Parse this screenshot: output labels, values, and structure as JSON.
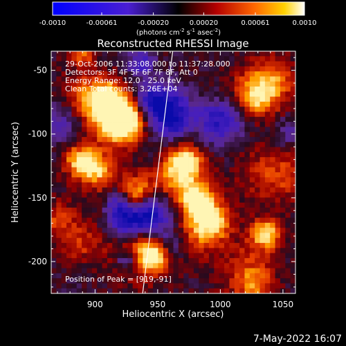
{
  "colorbar": {
    "ticks": [
      "-0.0010",
      "-0.00061",
      "-0.00020",
      "0.00020",
      "0.00061",
      "0.0010"
    ],
    "tick_values": [
      -0.001,
      -0.00061,
      -0.0002,
      0.0002,
      0.00061,
      0.001
    ],
    "min": -0.001,
    "max": 0.001,
    "units_base": "(photons cm",
    "units_exp1": "-2",
    "units_mid": " s",
    "units_exp2": "-1",
    "units_mid2": " asec",
    "units_exp3": "-2",
    "units_end": ")"
  },
  "chart_data": {
    "type": "heatmap",
    "title": "Reconstructed RHESSI Image",
    "xlabel": "Heliocentric X (arcsec)",
    "ylabel": "Heliocentric Y (arcsec)",
    "xlim": [
      865,
      1060
    ],
    "ylim": [
      -225,
      -35
    ],
    "xticks": [
      900,
      950,
      1000,
      1050
    ],
    "yticks": [
      -50,
      -100,
      -150,
      -200
    ],
    "colormap": "hot-metal with blue negatives",
    "limb_line": [
      [
        938,
        -225
      ],
      [
        962,
        -35
      ]
    ],
    "annotations": [
      "29-Oct-2006 11:33:08.000 to 11:37:28.000",
      "Detectors: 3F 4F 5F 6F 7F 8F, Att 0",
      "Energy Range: 12.0 - 25.0 keV",
      "Clean    Total counts: 3.26E+04"
    ],
    "peak_label": "Position of Peak = [919,-91]",
    "peak": [
      919,
      -91
    ]
  },
  "footer": {
    "date": "7-May-2022 16:07"
  }
}
